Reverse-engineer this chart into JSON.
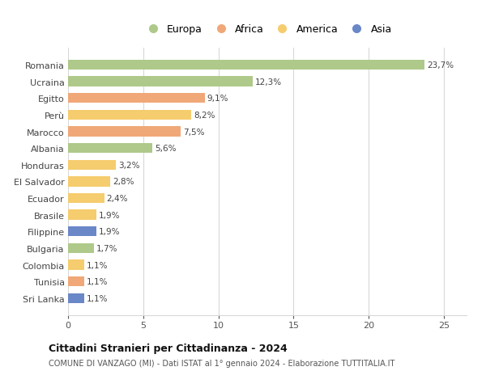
{
  "countries": [
    "Romania",
    "Ucraina",
    "Egitto",
    "Perù",
    "Marocco",
    "Albania",
    "Honduras",
    "El Salvador",
    "Ecuador",
    "Brasile",
    "Filippine",
    "Bulgaria",
    "Colombia",
    "Tunisia",
    "Sri Lanka"
  ],
  "values": [
    23.7,
    12.3,
    9.1,
    8.2,
    7.5,
    5.6,
    3.2,
    2.8,
    2.4,
    1.9,
    1.9,
    1.7,
    1.1,
    1.1,
    1.1
  ],
  "labels": [
    "23,7%",
    "12,3%",
    "9,1%",
    "8,2%",
    "7,5%",
    "5,6%",
    "3,2%",
    "2,8%",
    "2,4%",
    "1,9%",
    "1,9%",
    "1,7%",
    "1,1%",
    "1,1%",
    "1,1%"
  ],
  "continents": [
    "Europa",
    "Europa",
    "Africa",
    "America",
    "Africa",
    "Europa",
    "America",
    "America",
    "America",
    "America",
    "Asia",
    "Europa",
    "America",
    "Africa",
    "Asia"
  ],
  "colors": {
    "Europa": "#aec98a",
    "Africa": "#f0a878",
    "America": "#f5cc6e",
    "Asia": "#6a87c8"
  },
  "legend_order": [
    "Europa",
    "Africa",
    "America",
    "Asia"
  ],
  "xlim": [
    0,
    26.5
  ],
  "xticks": [
    0,
    5,
    10,
    15,
    20,
    25
  ],
  "title": "Cittadini Stranieri per Cittadinanza - 2024",
  "subtitle": "COMUNE DI VANZAGO (MI) - Dati ISTAT al 1° gennaio 2024 - Elaborazione TUTTITALIA.IT",
  "background_color": "#ffffff",
  "grid_color": "#d8d8d8"
}
